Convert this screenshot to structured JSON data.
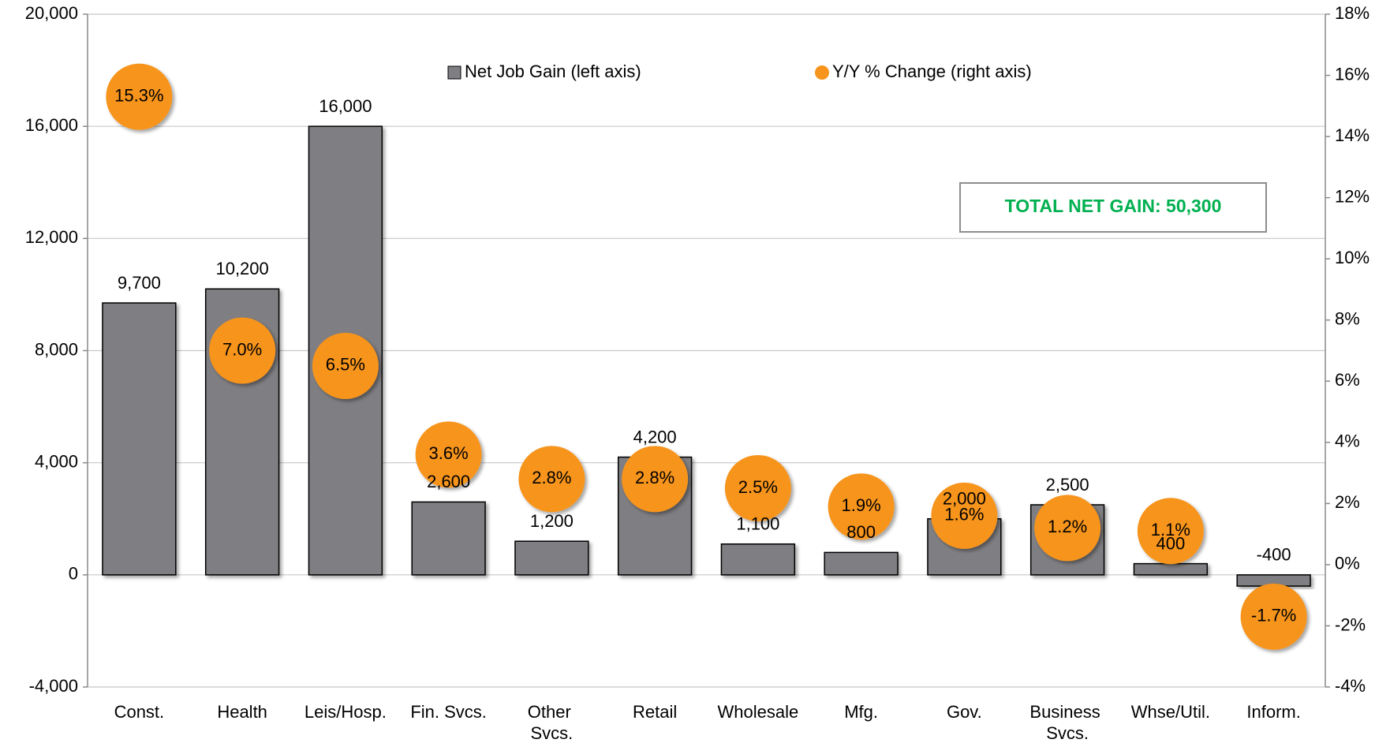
{
  "chart_data": {
    "type": "bar",
    "categories": [
      "Const.",
      "Health",
      "Leis/Hosp.",
      "Fin. Svcs.",
      "Other Svcs.",
      "Retail",
      "Wholesale",
      "Mfg.",
      "Gov.",
      "Business Svcs.",
      "Whse/Util.",
      "Inform."
    ],
    "series": [
      {
        "name": "Net Job Gain (left axis)",
        "type": "bar",
        "color": "#7f7e82",
        "values": [
          9700,
          10200,
          16000,
          2600,
          1200,
          4200,
          1100,
          800,
          2000,
          2500,
          400,
          -400
        ],
        "value_labels": [
          "9,700",
          "10,200",
          "16,000",
          "2,600",
          "1,200",
          "4,200",
          "1,100",
          "800",
          "2,000",
          "2,500",
          "400",
          "-400"
        ]
      },
      {
        "name": "Y/Y % Change (right axis)",
        "type": "scatter",
        "axis": "y2",
        "color": "#f7941d",
        "values": [
          15.3,
          7.0,
          6.5,
          3.6,
          2.8,
          2.8,
          2.5,
          1.9,
          1.6,
          1.2,
          1.1,
          -1.7
        ],
        "value_labels": [
          "15.3%",
          "7.0%",
          "6.5%",
          "3.6%",
          "2.8%",
          "2.8%",
          "2.5%",
          "1.9%",
          "1.6%",
          "1.2%",
          "1.1%",
          "-1.7%"
        ]
      }
    ],
    "ylim": [
      -4000,
      20000
    ],
    "yticks": [
      {
        "value": -4000,
        "label": "-4,000"
      },
      0,
      {
        "value": 4000,
        "label": "4,000"
      },
      {
        "value": 8000,
        "label": "8,000"
      },
      {
        "value": 12000,
        "label": "12,000"
      },
      {
        "value": 16000,
        "label": "16,000"
      },
      {
        "value": 20000,
        "label": "20,000"
      }
    ],
    "y2lim": [
      -4,
      18
    ],
    "y2ticks": [
      {
        "value": -4,
        "label": "-4%"
      },
      {
        "value": -2,
        "label": "-2%"
      },
      {
        "value": 0,
        "label": "0%"
      },
      {
        "value": 2,
        "label": "2%"
      },
      {
        "value": 4,
        "label": "4%"
      },
      {
        "value": 6,
        "label": "6%"
      },
      {
        "value": 8,
        "label": "8%"
      },
      {
        "value": 10,
        "label": "10%"
      },
      {
        "value": 12,
        "label": "12%"
      },
      {
        "value": 14,
        "label": "14%"
      },
      {
        "value": 16,
        "label": "16%"
      },
      {
        "value": 18,
        "label": "18%"
      }
    ],
    "grid": true,
    "legend": "top",
    "annotation": "TOTAL NET GAIN: 50,300"
  }
}
